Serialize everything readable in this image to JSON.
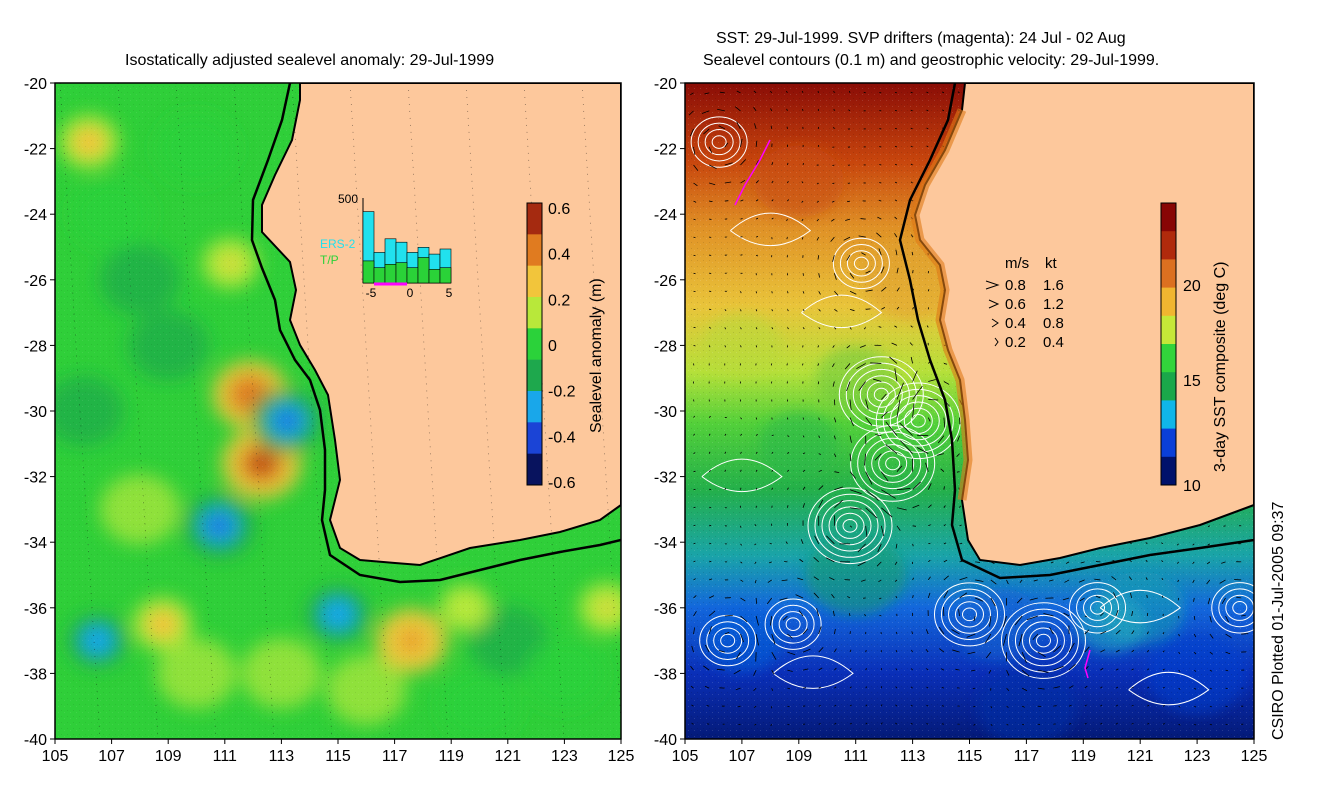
{
  "left_panel": {
    "title": "Isostatically adjusted sealevel anomaly: 29-Jul-1999",
    "x_ticks": [
      "105",
      "107",
      "109",
      "111",
      "113",
      "115",
      "117",
      "119",
      "121",
      "123",
      "125"
    ],
    "y_ticks": [
      "-20",
      "-22",
      "-24",
      "-26",
      "-28",
      "-30",
      "-32",
      "-34",
      "-36",
      "-38",
      "-40"
    ],
    "colorbar": {
      "label": "Sealevel anomaly (m)",
      "ticks": [
        "0.6",
        "0.4",
        "0.2",
        "0",
        "-0.2",
        "-0.4",
        "-0.6"
      ],
      "colors": [
        "#08135e",
        "#1b44d6",
        "#19a7ea",
        "#1ea84d",
        "#2bd23a",
        "#b8e83a",
        "#f2c53b",
        "#e07b20",
        "#a52a10"
      ]
    },
    "inset": {
      "ymax_label": "500",
      "x_ticks": [
        "-5",
        "0",
        "5"
      ],
      "labels": [
        "ERS-2",
        "T/P"
      ],
      "ers2_color": "#21e1ee",
      "tp_color": "#2ad238",
      "ers2_values": [
        420,
        180,
        260,
        240,
        180,
        210,
        170,
        200
      ],
      "tp_values": [
        130,
        90,
        110,
        120,
        90,
        150,
        80,
        90
      ]
    },
    "eddy_centers": [
      {
        "lon": 111.9,
        "lat": -29.5,
        "anom": 0.5
      },
      {
        "lon": 112.3,
        "lat": -31.6,
        "anom": 0.55
      },
      {
        "lon": 113.2,
        "lat": -30.3,
        "anom": -0.45
      },
      {
        "lon": 110.8,
        "lat": -33.5,
        "anom": -0.45
      },
      {
        "lon": 117.6,
        "lat": -37.0,
        "anom": 0.45
      },
      {
        "lon": 108.8,
        "lat": -36.5,
        "anom": 0.3
      },
      {
        "lon": 106.5,
        "lat": -37.0,
        "anom": -0.3
      },
      {
        "lon": 115.0,
        "lat": -36.2,
        "anom": -0.35
      },
      {
        "lon": 106.2,
        "lat": -21.8,
        "anom": 0.3
      },
      {
        "lon": 111.2,
        "lat": -25.5,
        "anom": 0.25
      },
      {
        "lon": 119.5,
        "lat": -36.0,
        "anom": 0.2
      },
      {
        "lon": 124.5,
        "lat": -36.0,
        "anom": 0.25
      }
    ]
  },
  "right_panel": {
    "title_line1": "SST: 29-Jul-1999. SVP drifters (magenta): 24 Jul - 02 Aug",
    "title_line2": "Sealevel contours (0.1 m) and geostrophic velocity: 29-Jul-1999.",
    "x_ticks": [
      "105",
      "107",
      "109",
      "111",
      "113",
      "115",
      "117",
      "119",
      "121",
      "123",
      "125"
    ],
    "y_ticks": [
      "-20",
      "-22",
      "-24",
      "-26",
      "-28",
      "-30",
      "-32",
      "-34",
      "-36",
      "-38",
      "-40"
    ],
    "colorbar": {
      "label": "3-day SST composite (deg C)",
      "ticks": [
        "20",
        "15",
        "10"
      ],
      "colors": [
        "#00126b",
        "#0a3fd8",
        "#10b6e8",
        "#1aa74a",
        "#32d43b",
        "#c5e838",
        "#f0b630",
        "#dc7020",
        "#b02a0c",
        "#880605"
      ]
    },
    "velocity_legend": {
      "header_ms": "m/s",
      "header_kt": "kt",
      "rows": [
        {
          "ms": "0.8",
          "kt": "1.6"
        },
        {
          "ms": "0.6",
          "kt": "1.2"
        },
        {
          "ms": "0.4",
          "kt": "0.8"
        },
        {
          "ms": "0.2",
          "kt": "0.4"
        }
      ]
    }
  },
  "land_color": "#fdc89c",
  "credit": "CSIRO Plotted 01-Jul-2005 09:37"
}
